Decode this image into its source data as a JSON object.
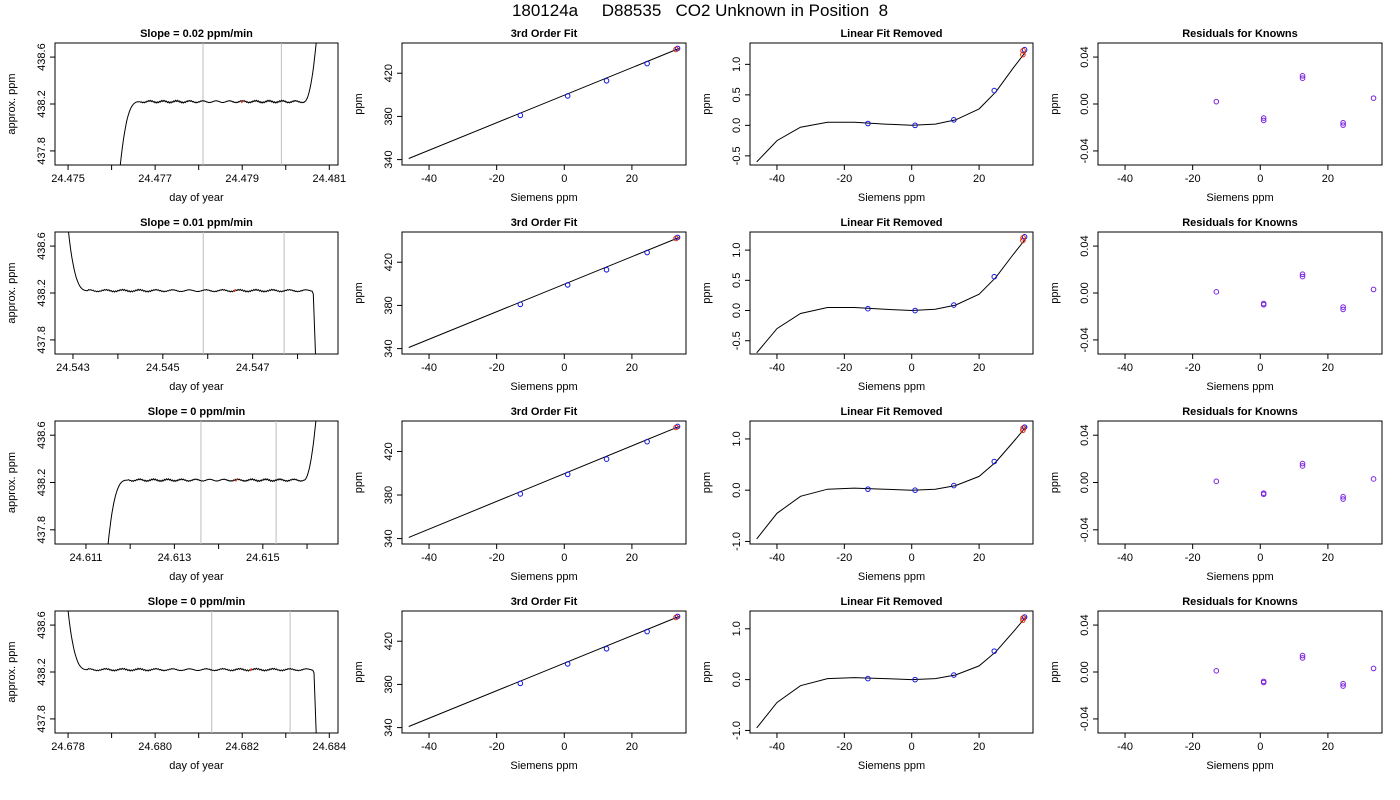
{
  "title": "180124a     D88535   CO2 Unknown in Position  8",
  "chart_data": [
    {
      "type": "line",
      "title": "Slope =  0.02  ppm/min",
      "xlabel": "day of year",
      "ylabel": "approx. ppm",
      "xlim": [
        24.4747,
        24.4812
      ],
      "ylim": [
        437.68,
        438.72
      ],
      "x_ticks": [
        24.475,
        24.476,
        24.477,
        24.478,
        24.479,
        24.48,
        24.481
      ],
      "x_tick_labels": [
        "24.475",
        "",
        "24.477",
        "",
        "24.479",
        "",
        "24.481"
      ],
      "y_ticks": [
        437.8,
        438.2,
        438.6
      ],
      "y_tick_labels": [
        "437.8",
        "438.2",
        "438.6"
      ],
      "vlines": [
        24.4781,
        24.4799
      ],
      "highlight_x": 24.479,
      "trace": {
        "x_start": 24.4762,
        "x_end": 24.4807,
        "plateau": 438.22,
        "shape": "rise",
        "fall_to": 437.68,
        "end_to": 438.72
      }
    },
    {
      "type": "line",
      "title": "3rd Order Fit",
      "xlabel": "Siemens ppm",
      "ylabel": "ppm",
      "xlim": [
        -48,
        36
      ],
      "ylim": [
        335,
        448
      ],
      "x_ticks": [
        -40,
        -20,
        0,
        20
      ],
      "y_ticks": [
        340,
        380,
        420
      ],
      "line": [
        [
          -46,
          341
        ],
        [
          34,
          443
        ]
      ],
      "knowns": [
        [
          -13,
          381
        ],
        [
          1,
          399
        ],
        [
          12.5,
          413
        ],
        [
          24.5,
          429
        ],
        [
          33.5,
          443
        ]
      ]
    },
    {
      "type": "line",
      "title": "Linear Fit Removed",
      "xlabel": "Siemens ppm",
      "ylabel": "ppm",
      "xlim": [
        -48,
        36
      ],
      "ylim": [
        -0.65,
        1.35
      ],
      "x_ticks": [
        -40,
        -20,
        0,
        20
      ],
      "y_ticks": [
        -0.5,
        0.0,
        0.5,
        1.0
      ],
      "y_tick_labels": [
        "-0.5",
        "0.0",
        "0.5",
        "1.0"
      ],
      "curve": [
        [
          -46,
          -0.6
        ],
        [
          -40,
          -0.25
        ],
        [
          -33,
          -0.03
        ],
        [
          -25,
          0.05
        ],
        [
          -17,
          0.05
        ],
        [
          -8,
          0.02
        ],
        [
          0,
          0.0
        ],
        [
          7,
          0.02
        ],
        [
          13,
          0.09
        ],
        [
          20,
          0.27
        ],
        [
          25,
          0.55
        ],
        [
          30,
          0.93
        ],
        [
          34,
          1.22
        ]
      ],
      "knowns": [
        [
          -13,
          0.03
        ],
        [
          1,
          0.0
        ],
        [
          12.5,
          0.09
        ],
        [
          24.5,
          0.57
        ],
        [
          33.5,
          1.24
        ]
      ],
      "unknown": [
        33,
        1.16
      ]
    },
    {
      "type": "scatter",
      "title": "Residuals for Knowns",
      "xlabel": "Siemens ppm",
      "ylabel": "ppm",
      "xlim": [
        -48,
        36
      ],
      "ylim": [
        -0.052,
        0.052
      ],
      "x_ticks": [
        -40,
        -20,
        0,
        20
      ],
      "y_ticks": [
        -0.04,
        0.0,
        0.04
      ],
      "y_tick_labels": [
        "-0.04",
        "0.00",
        "0.04"
      ],
      "points": [
        [
          -13,
          0.002
        ],
        [
          1,
          -0.012
        ],
        [
          1,
          -0.014
        ],
        [
          12.5,
          0.022
        ],
        [
          12.5,
          0.024
        ],
        [
          24.5,
          -0.016
        ],
        [
          24.5,
          -0.018
        ],
        [
          33.5,
          0.005
        ]
      ]
    },
    {
      "type": "line",
      "title": "Slope =  0.01  ppm/min",
      "xlabel": "day of year",
      "ylabel": "approx. ppm",
      "xlim": [
        24.5426,
        24.5489
      ],
      "ylim": [
        437.68,
        438.72
      ],
      "x_ticks": [
        24.543,
        24.544,
        24.545,
        24.546,
        24.547,
        24.548
      ],
      "x_tick_labels": [
        "24.543",
        "",
        "24.545",
        "",
        "24.547",
        ""
      ],
      "y_ticks": [
        437.8,
        438.2,
        438.6
      ],
      "y_tick_labels": [
        "437.8",
        "438.2",
        "438.6"
      ],
      "vlines": [
        24.5459,
        24.5477
      ],
      "highlight_x": 24.5466,
      "trace": {
        "x_start": 24.5429,
        "x_end": 24.5484,
        "plateau": 438.22,
        "shape": "fall",
        "fall_to": 438.72,
        "end_to": 437.68
      }
    },
    {
      "type": "line",
      "title": "3rd Order Fit",
      "xlabel": "Siemens ppm",
      "ylabel": "ppm",
      "xlim": [
        -48,
        36
      ],
      "ylim": [
        335,
        448
      ],
      "x_ticks": [
        -40,
        -20,
        0,
        20
      ],
      "y_ticks": [
        340,
        380,
        420
      ],
      "line": [
        [
          -46,
          341
        ],
        [
          34,
          443
        ]
      ],
      "knowns": [
        [
          -13,
          381
        ],
        [
          1,
          399
        ],
        [
          12.5,
          413
        ],
        [
          24.5,
          429
        ],
        [
          33.5,
          443
        ]
      ]
    },
    {
      "type": "line",
      "title": "Linear Fit Removed",
      "xlabel": "Siemens ppm",
      "ylabel": "ppm",
      "xlim": [
        -48,
        36
      ],
      "ylim": [
        -0.72,
        1.3
      ],
      "x_ticks": [
        -40,
        -20,
        0,
        20
      ],
      "y_ticks": [
        -0.5,
        0.0,
        0.5,
        1.0
      ],
      "y_tick_labels": [
        "-0.5",
        "0.0",
        "0.5",
        "1.0"
      ],
      "curve": [
        [
          -46,
          -0.7
        ],
        [
          -40,
          -0.3
        ],
        [
          -33,
          -0.05
        ],
        [
          -25,
          0.05
        ],
        [
          -17,
          0.05
        ],
        [
          -8,
          0.02
        ],
        [
          0,
          0.0
        ],
        [
          7,
          0.02
        ],
        [
          13,
          0.09
        ],
        [
          20,
          0.27
        ],
        [
          25,
          0.55
        ],
        [
          30,
          0.92
        ],
        [
          34,
          1.2
        ]
      ],
      "knowns": [
        [
          -13,
          0.03
        ],
        [
          1,
          0.0
        ],
        [
          12.5,
          0.09
        ],
        [
          24.5,
          0.56
        ],
        [
          33.5,
          1.22
        ]
      ],
      "unknown": [
        33,
        1.16
      ]
    },
    {
      "type": "scatter",
      "title": "Residuals for Knowns",
      "xlabel": "Siemens ppm",
      "ylabel": "ppm",
      "xlim": [
        -48,
        36
      ],
      "ylim": [
        -0.052,
        0.052
      ],
      "x_ticks": [
        -40,
        -20,
        0,
        20
      ],
      "y_ticks": [
        -0.04,
        0.0,
        0.04
      ],
      "y_tick_labels": [
        "-0.04",
        "0.00",
        "0.04"
      ],
      "points": [
        [
          -13,
          0.001
        ],
        [
          1,
          -0.009
        ],
        [
          1,
          -0.01
        ],
        [
          12.5,
          0.014
        ],
        [
          12.5,
          0.016
        ],
        [
          24.5,
          -0.012
        ],
        [
          24.5,
          -0.014
        ],
        [
          33.5,
          0.003
        ]
      ]
    },
    {
      "type": "line",
      "title": "Slope =  0  ppm/min",
      "xlabel": "day of year",
      "ylabel": "approx. ppm",
      "xlim": [
        24.6103,
        24.6167
      ],
      "ylim": [
        437.68,
        438.72
      ],
      "x_ticks": [
        24.611,
        24.612,
        24.613,
        24.614,
        24.615,
        24.616
      ],
      "x_tick_labels": [
        "24.611",
        "",
        "24.613",
        "",
        "24.615",
        ""
      ],
      "y_ticks": [
        437.8,
        438.2,
        438.6
      ],
      "y_tick_labels": [
        "437.8",
        "438.2",
        "438.6"
      ],
      "vlines": [
        24.6136,
        24.6153
      ],
      "highlight_x": 24.6144,
      "trace": {
        "x_start": 24.6115,
        "x_end": 24.6162,
        "plateau": 438.22,
        "shape": "rise",
        "fall_to": 437.68,
        "end_to": 438.72
      }
    },
    {
      "type": "line",
      "title": "3rd Order Fit",
      "xlabel": "Siemens ppm",
      "ylabel": "ppm",
      "xlim": [
        -48,
        36
      ],
      "ylim": [
        335,
        448
      ],
      "x_ticks": [
        -40,
        -20,
        0,
        20
      ],
      "y_ticks": [
        340,
        380,
        420
      ],
      "line": [
        [
          -46,
          341
        ],
        [
          34,
          443
        ]
      ],
      "knowns": [
        [
          -13,
          381
        ],
        [
          1,
          399
        ],
        [
          12.5,
          413
        ],
        [
          24.5,
          429
        ],
        [
          33.5,
          443
        ]
      ]
    },
    {
      "type": "line",
      "title": "Linear Fit Removed",
      "xlabel": "Siemens ppm",
      "ylabel": "ppm",
      "xlim": [
        -48,
        36
      ],
      "ylim": [
        -1.05,
        1.35
      ],
      "x_ticks": [
        -40,
        -20,
        0,
        20
      ],
      "y_ticks": [
        -1.0,
        0.0,
        1.0
      ],
      "y_tick_labels": [
        "-1.0",
        "0.0",
        "1.0"
      ],
      "curve": [
        [
          -46,
          -0.95
        ],
        [
          -40,
          -0.45
        ],
        [
          -33,
          -0.12
        ],
        [
          -25,
          0.02
        ],
        [
          -17,
          0.04
        ],
        [
          -8,
          0.02
        ],
        [
          0,
          0.0
        ],
        [
          7,
          0.02
        ],
        [
          13,
          0.09
        ],
        [
          20,
          0.27
        ],
        [
          25,
          0.55
        ],
        [
          30,
          0.93
        ],
        [
          34,
          1.24
        ]
      ],
      "knowns": [
        [
          -13,
          0.02
        ],
        [
          1,
          0.0
        ],
        [
          12.5,
          0.09
        ],
        [
          24.5,
          0.56
        ],
        [
          33.5,
          1.23
        ]
      ],
      "unknown": [
        33,
        1.17
      ]
    },
    {
      "type": "scatter",
      "title": "Residuals for Knowns",
      "xlabel": "Siemens ppm",
      "ylabel": "ppm",
      "xlim": [
        -48,
        36
      ],
      "ylim": [
        -0.052,
        0.052
      ],
      "x_ticks": [
        -40,
        -20,
        0,
        20
      ],
      "y_ticks": [
        -0.04,
        0.0,
        0.04
      ],
      "y_tick_labels": [
        "-0.04",
        "0.00",
        "0.04"
      ],
      "points": [
        [
          -13,
          0.001
        ],
        [
          1,
          -0.009
        ],
        [
          1,
          -0.01
        ],
        [
          12.5,
          0.014
        ],
        [
          12.5,
          0.016
        ],
        [
          24.5,
          -0.012
        ],
        [
          24.5,
          -0.014
        ],
        [
          33.5,
          0.003
        ]
      ]
    },
    {
      "type": "line",
      "title": "Slope =  0  ppm/min",
      "xlabel": "day of year",
      "ylabel": "approx. ppm",
      "xlim": [
        24.6777,
        24.6842
      ],
      "ylim": [
        437.68,
        438.72
      ],
      "x_ticks": [
        24.678,
        24.679,
        24.68,
        24.681,
        24.682,
        24.683,
        24.684
      ],
      "x_tick_labels": [
        "24.678",
        "",
        "24.680",
        "",
        "24.682",
        "",
        "24.684"
      ],
      "y_ticks": [
        437.8,
        438.2,
        438.6
      ],
      "y_tick_labels": [
        "437.8",
        "438.2",
        "438.6"
      ],
      "vlines": [
        24.6813,
        24.6831
      ],
      "highlight_x": 24.6822,
      "trace": {
        "x_start": 24.678,
        "x_end": 24.6837,
        "plateau": 438.22,
        "shape": "fall",
        "fall_to": 438.72,
        "end_to": 437.68
      }
    },
    {
      "type": "line",
      "title": "3rd Order Fit",
      "xlabel": "Siemens ppm",
      "ylabel": "ppm",
      "xlim": [
        -48,
        36
      ],
      "ylim": [
        335,
        448
      ],
      "x_ticks": [
        -40,
        -20,
        0,
        20
      ],
      "y_ticks": [
        340,
        380,
        420
      ],
      "line": [
        [
          -46,
          341
        ],
        [
          34,
          443
        ]
      ],
      "knowns": [
        [
          -13,
          381
        ],
        [
          1,
          399
        ],
        [
          12.5,
          413
        ],
        [
          24.5,
          429
        ],
        [
          33.5,
          443
        ]
      ]
    },
    {
      "type": "line",
      "title": "Linear Fit Removed",
      "xlabel": "Siemens ppm",
      "ylabel": "ppm",
      "xlim": [
        -48,
        36
      ],
      "ylim": [
        -1.05,
        1.35
      ],
      "x_ticks": [
        -40,
        -20,
        0,
        20
      ],
      "y_ticks": [
        -1.0,
        0.0,
        1.0
      ],
      "y_tick_labels": [
        "-1.0",
        "0.0",
        "1.0"
      ],
      "curve": [
        [
          -46,
          -0.95
        ],
        [
          -40,
          -0.45
        ],
        [
          -33,
          -0.12
        ],
        [
          -25,
          0.02
        ],
        [
          -17,
          0.04
        ],
        [
          -8,
          0.02
        ],
        [
          0,
          0.0
        ],
        [
          7,
          0.02
        ],
        [
          13,
          0.09
        ],
        [
          20,
          0.27
        ],
        [
          25,
          0.55
        ],
        [
          30,
          0.93
        ],
        [
          34,
          1.24
        ]
      ],
      "knowns": [
        [
          -13,
          0.02
        ],
        [
          1,
          0.0
        ],
        [
          12.5,
          0.09
        ],
        [
          24.5,
          0.56
        ],
        [
          33.5,
          1.23
        ]
      ],
      "unknown": [
        33,
        1.17
      ]
    },
    {
      "type": "scatter",
      "title": "Residuals for Knowns",
      "xlabel": "Siemens ppm",
      "ylabel": "ppm",
      "xlim": [
        -48,
        36
      ],
      "ylim": [
        -0.052,
        0.052
      ],
      "x_ticks": [
        -40,
        -20,
        0,
        20
      ],
      "y_ticks": [
        -0.04,
        0.0,
        0.04
      ],
      "y_tick_labels": [
        "-0.04",
        "0.00",
        "0.04"
      ],
      "points": [
        [
          -13,
          0.001
        ],
        [
          1,
          -0.008
        ],
        [
          1,
          -0.009
        ],
        [
          12.5,
          0.012
        ],
        [
          12.5,
          0.014
        ],
        [
          24.5,
          -0.01
        ],
        [
          24.5,
          -0.012
        ],
        [
          33.5,
          0.003
        ]
      ]
    }
  ]
}
